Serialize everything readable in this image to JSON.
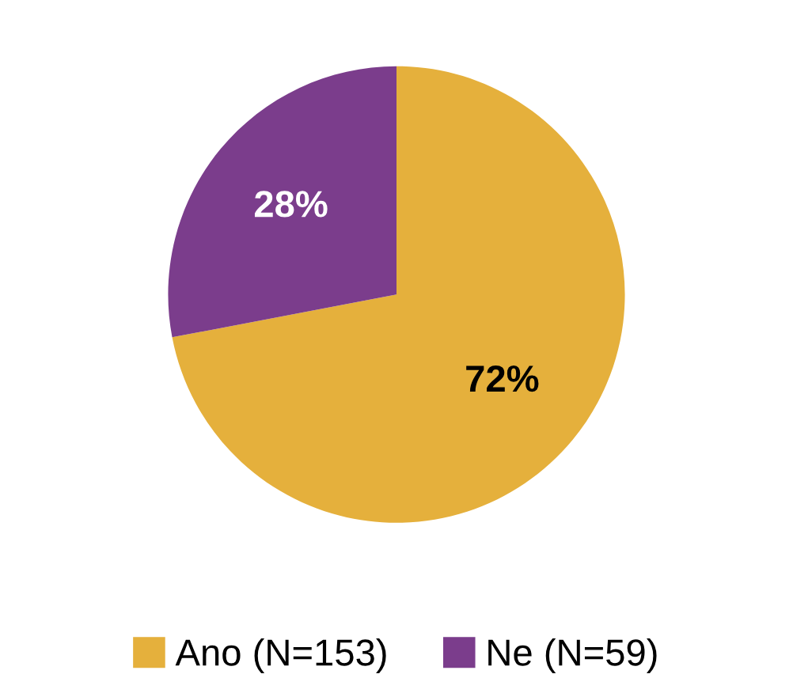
{
  "chart_data": {
    "type": "pie",
    "categories": [
      "Ano (N=153)",
      "Ne (N=59)"
    ],
    "values": [
      72,
      28
    ],
    "colors": [
      "#e5b03c",
      "#7b3d8c"
    ],
    "value_labels": [
      "72%",
      "28%"
    ],
    "legend": "bottom"
  }
}
